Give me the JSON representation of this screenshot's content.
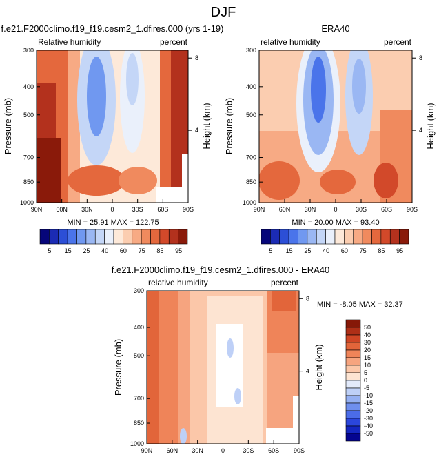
{
  "page_title": "DJF",
  "chart_data": [
    {
      "type": "heatmap",
      "title": "f.e21.F2000climo.f19_f19.cesm2_1.dfires.000 (yrs 1-19)",
      "left_label": "Relative humidity",
      "right_label": "percent",
      "ylabel": "Pressure (mb)",
      "y2label": "Height (km)",
      "xlabel": "",
      "x_ticks": [
        "90N",
        "60N",
        "30N",
        "0",
        "30S",
        "60S",
        "90S"
      ],
      "y_ticks": [
        "300",
        "400",
        "500",
        "700",
        "850",
        "1000"
      ],
      "y2_ticks": [
        "8",
        "4"
      ],
      "stats": "MIN = 25.91   MAX = 122.75",
      "colorbar": {
        "orientation": "horizontal",
        "labels": [
          "5",
          "15",
          "25",
          "40",
          "60",
          "75",
          "85",
          "95"
        ]
      }
    },
    {
      "type": "heatmap",
      "title": "ERA40",
      "left_label": "relative humidity",
      "right_label": "percent",
      "ylabel": "Pressure (mb)",
      "y2label": "Height (km)",
      "xlabel": "",
      "x_ticks": [
        "90N",
        "60N",
        "30N",
        "0",
        "30S",
        "60S",
        "90S"
      ],
      "y_ticks": [
        "300",
        "400",
        "500",
        "700",
        "850",
        "1000"
      ],
      "y2_ticks": [
        "8",
        "4"
      ],
      "stats": "MIN = 20.00   MAX = 93.40",
      "colorbar": {
        "orientation": "horizontal",
        "labels": [
          "5",
          "15",
          "25",
          "40",
          "60",
          "75",
          "85",
          "95"
        ]
      }
    },
    {
      "type": "heatmap",
      "title": "f.e21.F2000climo.f19_f19.cesm2_1.dfires.000 - ERA40",
      "left_label": "relative humidity",
      "right_label": "percent",
      "ylabel": "Pressure (mb)",
      "y2label": "Height (km)",
      "xlabel": "",
      "x_ticks": [
        "90N",
        "60N",
        "30N",
        "0",
        "30S",
        "60S",
        "90S"
      ],
      "y_ticks": [
        "300",
        "400",
        "500",
        "700",
        "850",
        "1000"
      ],
      "y2_ticks": [
        "8",
        "4"
      ],
      "stats": "MIN = -8.05   MAX = 32.37",
      "colorbar": {
        "orientation": "vertical",
        "labels": [
          "50",
          "40",
          "30",
          "20",
          "15",
          "10",
          "5",
          "0",
          "-5",
          "-10",
          "-15",
          "-20",
          "-30",
          "-40",
          "-50"
        ]
      }
    }
  ],
  "colors": {
    "rh_scale": [
      "#06067a",
      "#1b2bb4",
      "#2c4fd6",
      "#4a74ea",
      "#7098f0",
      "#9ab7f3",
      "#c4d6f7",
      "#eaf0fb",
      "#fde9d9",
      "#fbcdb0",
      "#f7aa84",
      "#f08a5e",
      "#e4683d",
      "#d2492a",
      "#b3311d",
      "#8a1a0a"
    ],
    "diff_scale": [
      "#040490",
      "#1426c0",
      "#2b46dc",
      "#4b6ce8",
      "#6f8fee",
      "#95b0f2",
      "#bed0f7",
      "#e2eafb",
      "#fde4d2",
      "#fbc7a9",
      "#f6a47f",
      "#ef8459",
      "#e2653a",
      "#cf4625",
      "#ae2f17",
      "#861808"
    ]
  }
}
